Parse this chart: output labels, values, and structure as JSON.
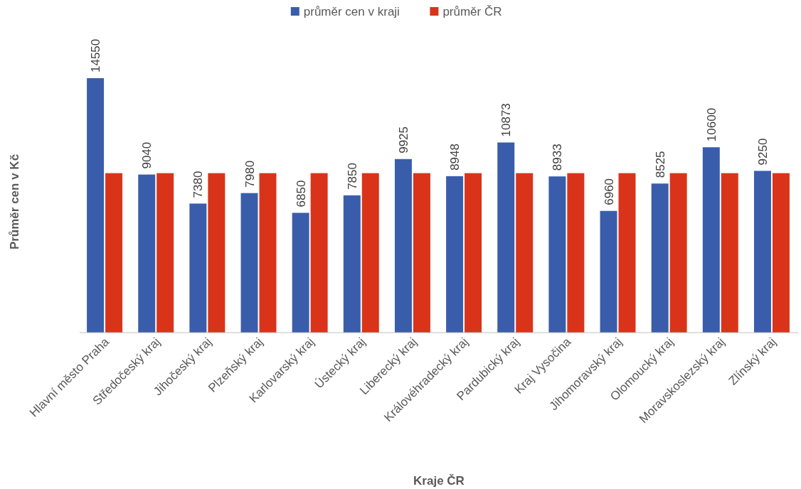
{
  "chart_data": {
    "type": "bar",
    "xlabel": "Kraje ČR",
    "ylabel": "Průměr cen v Kč",
    "legend": "top",
    "categories": [
      "Hlavní město Praha",
      "Středočeský kraj",
      "Jihočeský kraj",
      "Plzeňský kraj",
      "Karlovarský kraj",
      "Ústecký kraj",
      "Liberecký kraj",
      "Královéhradecký kraj",
      "Pardubický kraj",
      "Kraj Vysočina",
      "Jihomoravský kraj",
      "Olomoucký kraj",
      "Moravskoslezský kraj",
      "Zlínský kraj"
    ],
    "series": [
      {
        "name": "průměr cen v kraji",
        "color": "#3a5dab",
        "values": [
          14550,
          9040,
          7380,
          7980,
          6850,
          7850,
          9925,
          8948,
          10873,
          8933,
          6960,
          8525,
          10600,
          9250
        ],
        "value_labels": [
          "14550",
          "9040",
          "7380",
          "7980",
          "6850",
          "7850",
          "9925",
          "8948",
          "10873",
          "8933",
          "6960",
          "8525",
          "10600",
          "9250"
        ]
      },
      {
        "name": "průměr ČR",
        "color": "#d9341a",
        "values": [
          9119,
          9119,
          9119,
          9119,
          9119,
          9119,
          9119,
          9119,
          9119,
          9119,
          9119,
          9119,
          9119,
          9119
        ]
      }
    ]
  }
}
